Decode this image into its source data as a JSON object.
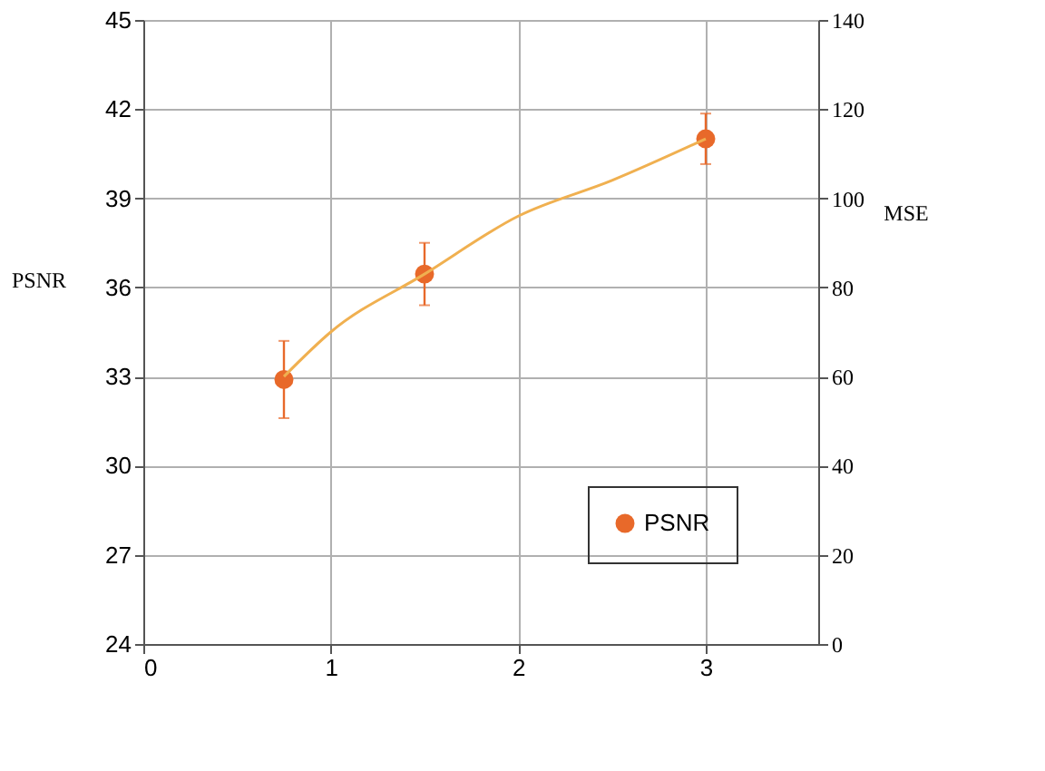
{
  "chart_data": {
    "type": "scatter",
    "xlabel": null,
    "ylabel": "PSNR",
    "y2label": "MSE",
    "xlim": [
      0,
      3.6
    ],
    "xticks": [
      0,
      1,
      2,
      3
    ],
    "ylim": [
      24,
      45
    ],
    "yticks": [
      24,
      27,
      30,
      33,
      36,
      39,
      42,
      45
    ],
    "y2lim": [
      0,
      140
    ],
    "y2ticks": [
      0,
      20,
      40,
      60,
      80,
      100,
      120,
      140
    ],
    "grid": true,
    "legend": "bottom right",
    "marker": "circle",
    "series": [
      {
        "name": "PSNR",
        "type": "scatter",
        "color": "#e8692a",
        "x": [
          0.75,
          1.5,
          3
        ],
        "values": [
          32.9,
          36.45,
          41.0
        ],
        "errors": [
          1.3,
          1.05,
          0.85
        ]
      },
      {
        "type": "line",
        "color": "#f0b050",
        "x": [
          0.75,
          1,
          1.5,
          2,
          2.5,
          3
        ],
        "values": [
          33,
          34.5,
          36.45,
          38.4,
          39.6,
          41.0
        ],
        "marker": "none",
        "line_style": "solid"
      }
    ]
  }
}
